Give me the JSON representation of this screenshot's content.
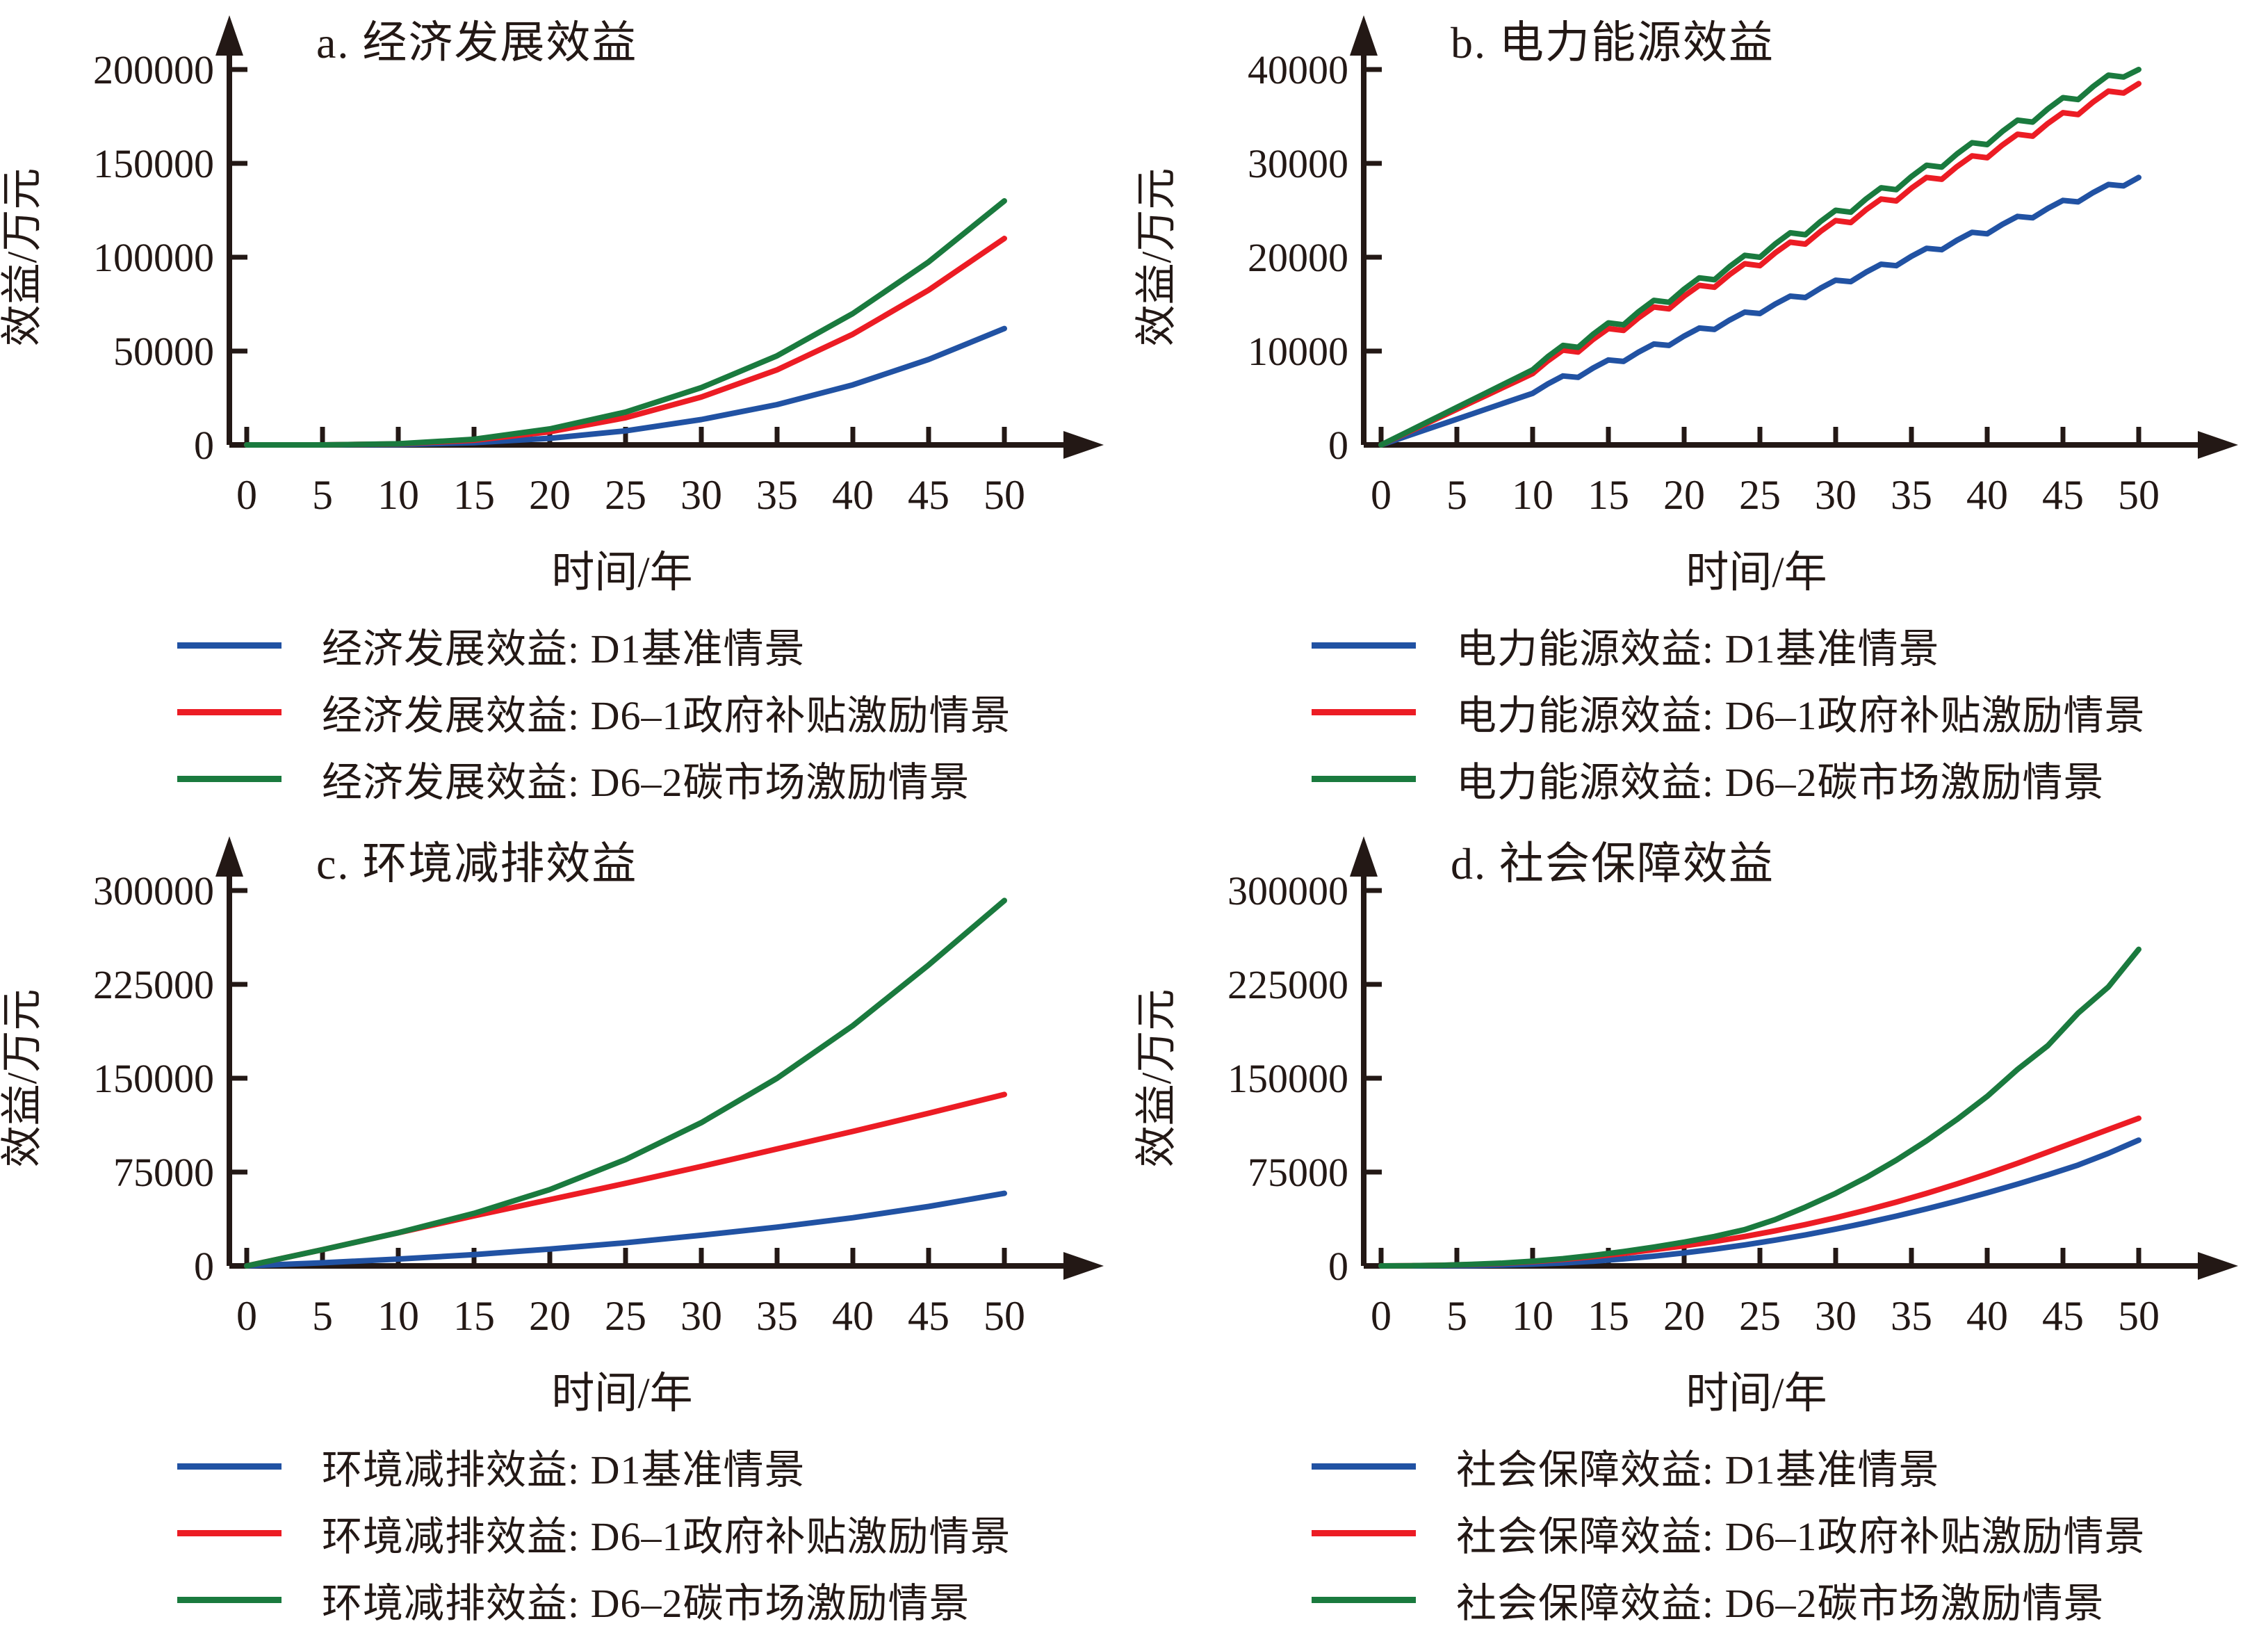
{
  "figure": {
    "x_axis_label": "时间/年",
    "y_axis_label": "效益/万元"
  },
  "colors": {
    "blue": "#2152a3",
    "red": "#ec1c24",
    "green": "#1a7a3e",
    "axis": "#231815"
  },
  "chart_data": [
    {
      "id": "a",
      "type": "line",
      "title": "a. 经济发展效益",
      "xlabel": "时间/年",
      "ylabel": "效益/万元",
      "xlim": [
        0,
        50
      ],
      "xticks": [
        0,
        5,
        10,
        15,
        20,
        25,
        30,
        35,
        40,
        45,
        50
      ],
      "ylim": [
        0,
        200000
      ],
      "yticks": [
        0,
        50000,
        100000,
        150000,
        200000
      ],
      "grid": false,
      "legend_position": "below",
      "series": [
        {
          "name": "经济发展效益: D1基准情景",
          "color": "blue",
          "x_start": 0,
          "x_step": 5,
          "values": [
            0,
            0,
            200,
            1200,
            3500,
            7500,
            13500,
            21500,
            32000,
            45500,
            62000
          ]
        },
        {
          "name": "经济发展效益: D6–1政府补贴激励情景",
          "color": "red",
          "x_start": 0,
          "x_step": 5,
          "values": [
            0,
            0,
            500,
            2500,
            7000,
            14500,
            25500,
            40000,
            59000,
            82500,
            110000
          ]
        },
        {
          "name": "经济发展效益: D6–2碳市场激励情景",
          "color": "green",
          "x_start": 0,
          "x_step": 5,
          "values": [
            0,
            0,
            600,
            3000,
            8500,
            17500,
            30500,
            47500,
            70000,
            97500,
            130000
          ]
        }
      ]
    },
    {
      "id": "b",
      "type": "line",
      "title": "b. 电力能源效益",
      "xlabel": "时间/年",
      "ylabel": "效益/万元",
      "xlim": [
        0,
        50
      ],
      "xticks": [
        0,
        5,
        10,
        15,
        20,
        25,
        30,
        35,
        40,
        45,
        50
      ],
      "ylim": [
        0,
        40000
      ],
      "yticks": [
        0,
        10000,
        20000,
        30000,
        40000
      ],
      "grid": false,
      "legend_position": "below",
      "series": [
        {
          "name": "电力能源效益: D1基准情景",
          "color": "blue",
          "x_start": 0,
          "x_step": 1,
          "values": [
            0,
            550,
            1100,
            1650,
            2200,
            2750,
            3300,
            3850,
            4400,
            4950,
            5500,
            6500,
            7350,
            7200,
            8200,
            9050,
            8900,
            9900,
            10750,
            10600,
            11600,
            12450,
            12300,
            13300,
            14150,
            14000,
            15000,
            15850,
            15700,
            16700,
            17550,
            17400,
            18400,
            19250,
            19100,
            20100,
            20950,
            20800,
            21800,
            22650,
            22500,
            23500,
            24350,
            24200,
            25200,
            26050,
            25900,
            26900,
            27750,
            27600,
            28500
          ]
        },
        {
          "name": "电力能源效益: D6–1政府补贴激励情景",
          "color": "red",
          "x_start": 0,
          "x_step": 1,
          "values": [
            0,
            760,
            1520,
            2280,
            3040,
            3800,
            4560,
            5320,
            6080,
            6840,
            7600,
            8950,
            10100,
            9900,
            11250,
            12400,
            12200,
            13550,
            14700,
            14500,
            15850,
            17000,
            16800,
            18150,
            19300,
            19100,
            20450,
            21600,
            21400,
            22750,
            23900,
            23700,
            25050,
            26200,
            26000,
            27350,
            28500,
            28300,
            29650,
            30800,
            30600,
            31950,
            33100,
            32900,
            34250,
            35400,
            35200,
            36550,
            37700,
            37500,
            38500
          ]
        },
        {
          "name": "电力能源效益: D6–2碳市场激励情景",
          "color": "green",
          "x_start": 0,
          "x_step": 1,
          "values": [
            0,
            800,
            1600,
            2400,
            3200,
            4000,
            4800,
            5600,
            6400,
            7200,
            8000,
            9400,
            10600,
            10400,
            11800,
            13000,
            12800,
            14200,
            15400,
            15200,
            16600,
            17800,
            17600,
            19000,
            20200,
            20000,
            21400,
            22600,
            22400,
            23800,
            25000,
            24800,
            26200,
            27400,
            27200,
            28600,
            29800,
            29600,
            31000,
            32200,
            32000,
            33400,
            34600,
            34400,
            35800,
            37000,
            36800,
            38200,
            39400,
            39200,
            40000
          ]
        }
      ]
    },
    {
      "id": "c",
      "type": "line",
      "title": "c. 环境减排效益",
      "xlabel": "时间/年",
      "ylabel": "效益/万元",
      "xlim": [
        0,
        50
      ],
      "xticks": [
        0,
        5,
        10,
        15,
        20,
        25,
        30,
        35,
        40,
        45,
        50
      ],
      "ylim": [
        0,
        300000
      ],
      "yticks": [
        0,
        75000,
        150000,
        225000,
        300000
      ],
      "grid": false,
      "legend_position": "below",
      "series": [
        {
          "name": "环境减排效益: D1基准情景",
          "color": "blue",
          "x_start": 0,
          "x_step": 5,
          "values": [
            0,
            2500,
            5500,
            9000,
            13500,
            18500,
            24500,
            31000,
            38500,
            47500,
            58000
          ]
        },
        {
          "name": "环境减排效益: D6–1政府补贴激励情景",
          "color": "red",
          "x_start": 0,
          "x_step": 5,
          "values": [
            0,
            13000,
            26500,
            40000,
            53000,
            66000,
            79500,
            93500,
            107500,
            122000,
            137000
          ]
        },
        {
          "name": "环境减排效益: D6–2碳市场激励情景",
          "color": "green",
          "x_start": 0,
          "x_step": 5,
          "values": [
            0,
            13000,
            26500,
            42000,
            61000,
            85000,
            114500,
            150000,
            192000,
            240500,
            292000
          ]
        }
      ]
    },
    {
      "id": "d",
      "type": "line",
      "title": "d. 社会保障效益",
      "xlabel": "时间/年",
      "ylabel": "效益/万元",
      "xlim": [
        0,
        50
      ],
      "xticks": [
        0,
        5,
        10,
        15,
        20,
        25,
        30,
        35,
        40,
        45,
        50
      ],
      "ylim": [
        0,
        300000
      ],
      "yticks": [
        0,
        75000,
        150000,
        225000,
        300000
      ],
      "grid": false,
      "legend_position": "below",
      "series": [
        {
          "name": "社会保障效益: D1基准情景",
          "color": "blue",
          "x_start": 0,
          "x_step": 2,
          "values": [
            0,
            0,
            100,
            300,
            700,
            1400,
            2400,
            3800,
            5600,
            7800,
            10400,
            13400,
            16800,
            20600,
            24800,
            29400,
            34400,
            39800,
            45600,
            51800,
            58400,
            65400,
            72800,
            80600,
            90000,
            100500
          ]
        },
        {
          "name": "社会保障效益: D6–1政府补贴激励情景",
          "color": "red",
          "x_start": 0,
          "x_step": 2,
          "values": [
            0,
            150,
            500,
            1100,
            2000,
            3400,
            5200,
            7400,
            10000,
            13000,
            16000,
            19500,
            23500,
            28000,
            33000,
            38500,
            44500,
            51000,
            58000,
            65500,
            73500,
            82000,
            91000,
            100000,
            109000,
            118000
          ]
        },
        {
          "name": "社会保障效益: D6–2碳市场激励情景",
          "color": "green",
          "x_start": 0,
          "x_step": 2,
          "values": [
            0,
            150,
            500,
            1200,
            2200,
            3800,
            5800,
            8400,
            11500,
            15000,
            19000,
            23500,
            29000,
            37000,
            47000,
            58000,
            70500,
            84500,
            100000,
            117000,
            135500,
            157000,
            176000,
            202000,
            223000,
            253000
          ]
        }
      ]
    }
  ]
}
